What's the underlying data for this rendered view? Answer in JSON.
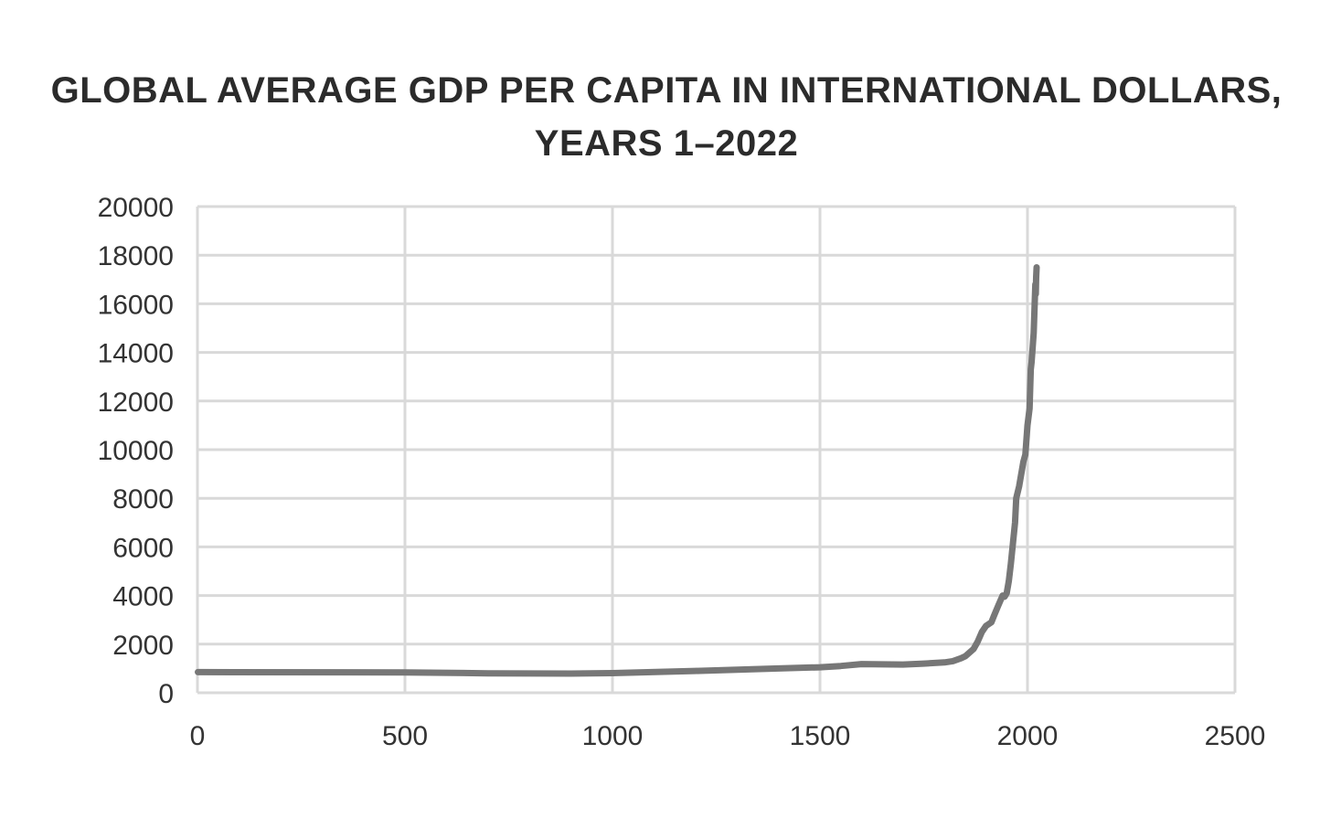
{
  "chart_data": {
    "type": "line",
    "title_lines": [
      "GLOBAL AVERAGE GDP PER CAPITA IN INTERNATIONAL DOLLARS,",
      "YEARS 1–2022"
    ],
    "xlabel": "",
    "ylabel": "",
    "xlim": [
      0,
      2500
    ],
    "ylim": [
      0,
      20000
    ],
    "x_ticks": [
      0,
      500,
      1000,
      1500,
      2000,
      2500
    ],
    "y_ticks": [
      0,
      2000,
      4000,
      6000,
      8000,
      10000,
      12000,
      14000,
      16000,
      18000,
      20000
    ],
    "grid": true,
    "line_color": "#777777",
    "grid_color": "#d9d9d9",
    "series": [
      {
        "x": [
          1,
          500,
          700,
          900,
          1000,
          1200,
          1400,
          1500,
          1550,
          1600,
          1650,
          1700,
          1750,
          1800,
          1820,
          1840,
          1850,
          1870,
          1880,
          1890,
          1900,
          1913,
          1920,
          1930,
          1940,
          1945,
          1950,
          1955,
          1960,
          1970,
          1973,
          1980,
          1990,
          1995,
          2000,
          2005,
          2008,
          2010,
          2015,
          2019,
          2020,
          2021,
          2022
        ],
        "y": [
          850,
          840,
          800,
          790,
          810,
          900,
          1000,
          1050,
          1100,
          1180,
          1170,
          1160,
          1200,
          1250,
          1300,
          1420,
          1500,
          1800,
          2100,
          2500,
          2750,
          2900,
          3200,
          3600,
          4000,
          3950,
          4100,
          4600,
          5300,
          7000,
          8000,
          8500,
          9500,
          9800,
          11000,
          11700,
          13300,
          13600,
          14800,
          16800,
          16400,
          17100,
          17500
        ]
      }
    ]
  }
}
